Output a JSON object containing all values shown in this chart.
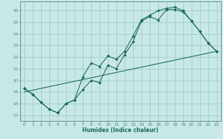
{
  "xlabel": "Humidex (Indice chaleur)",
  "background_color": "#c8e8e8",
  "grid_color": "#a0c8c8",
  "line_color": "#1a6b5a",
  "xlim": [
    -0.5,
    23.5
  ],
  "ylim": [
    16.5,
    26.8
  ],
  "xticks": [
    0,
    1,
    2,
    3,
    4,
    5,
    6,
    7,
    8,
    9,
    10,
    11,
    12,
    13,
    14,
    15,
    16,
    17,
    18,
    19,
    20,
    21,
    22,
    23
  ],
  "yticks": [
    17,
    18,
    19,
    20,
    21,
    22,
    23,
    24,
    25,
    26
  ],
  "line1_x": [
    0,
    1,
    2,
    3,
    4,
    5,
    6,
    7,
    8,
    9,
    10,
    11,
    12,
    13,
    14,
    15,
    16,
    17,
    18,
    19,
    20,
    21,
    22,
    23
  ],
  "line1_y": [
    19.3,
    18.8,
    18.1,
    17.5,
    17.2,
    18.0,
    18.3,
    19.2,
    20.0,
    19.8,
    21.3,
    21.0,
    22.2,
    23.3,
    25.1,
    25.5,
    25.2,
    26.1,
    26.1,
    25.9,
    25.1,
    24.2,
    23.2,
    22.5
  ],
  "line2_x": [
    0,
    1,
    2,
    3,
    4,
    5,
    6,
    7,
    8,
    9,
    10,
    11,
    12,
    13,
    14,
    15,
    16,
    17,
    18,
    19,
    20,
    21,
    22,
    23
  ],
  "line2_y": [
    19.3,
    18.8,
    18.1,
    17.5,
    17.2,
    18.0,
    18.3,
    20.3,
    21.5,
    21.2,
    22.1,
    21.8,
    22.5,
    23.8,
    25.2,
    25.6,
    26.0,
    26.2,
    26.3,
    26.0,
    25.1,
    24.2,
    23.2,
    22.5
  ],
  "line3_x": [
    0,
    23
  ],
  "line3_y": [
    19.0,
    22.5
  ],
  "xlabel_fontsize": 5.5,
  "tick_fontsize": 4.5,
  "line_width": 0.8,
  "marker_size": 2.0
}
